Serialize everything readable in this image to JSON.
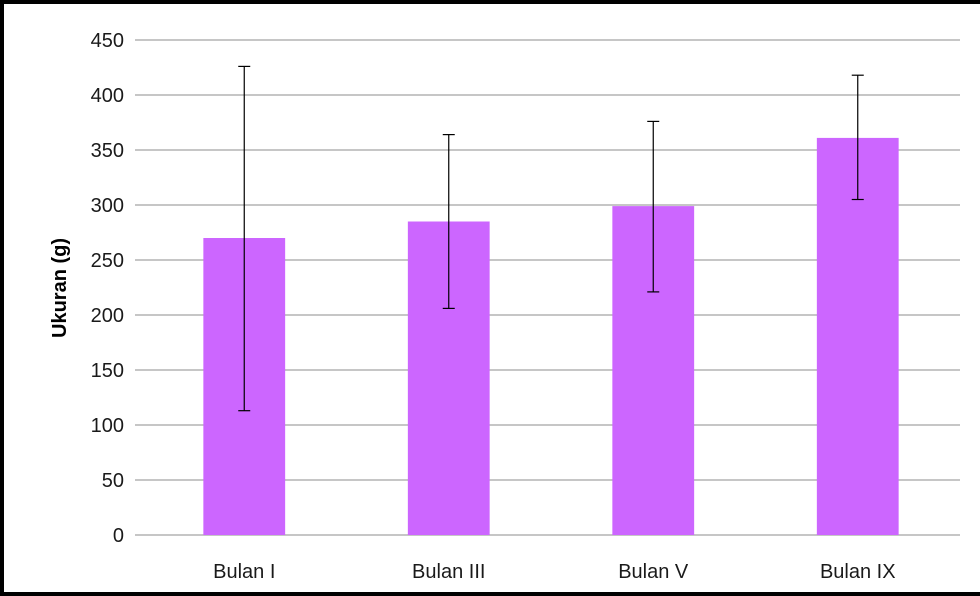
{
  "chart_data": {
    "type": "bar",
    "title": "",
    "xlabel": "",
    "ylabel": "Ukuran (g)",
    "categories": [
      "Bulan I",
      "Bulan III",
      "Bulan V",
      "Bulan IX"
    ],
    "values": [
      270,
      285,
      299,
      361
    ],
    "error_high": [
      426,
      364,
      376,
      418
    ],
    "error_low": [
      113,
      206,
      221,
      305
    ],
    "ylim": [
      0,
      450
    ],
    "yticks": [
      "0",
      "50",
      "100",
      "150",
      "200",
      "250",
      "300",
      "350",
      "400",
      "450"
    ],
    "grid": true,
    "legend": "none",
    "bar_color": "#cc66ff",
    "gridline_color": "#8c8c8c",
    "error_bar_color": "#000000"
  }
}
